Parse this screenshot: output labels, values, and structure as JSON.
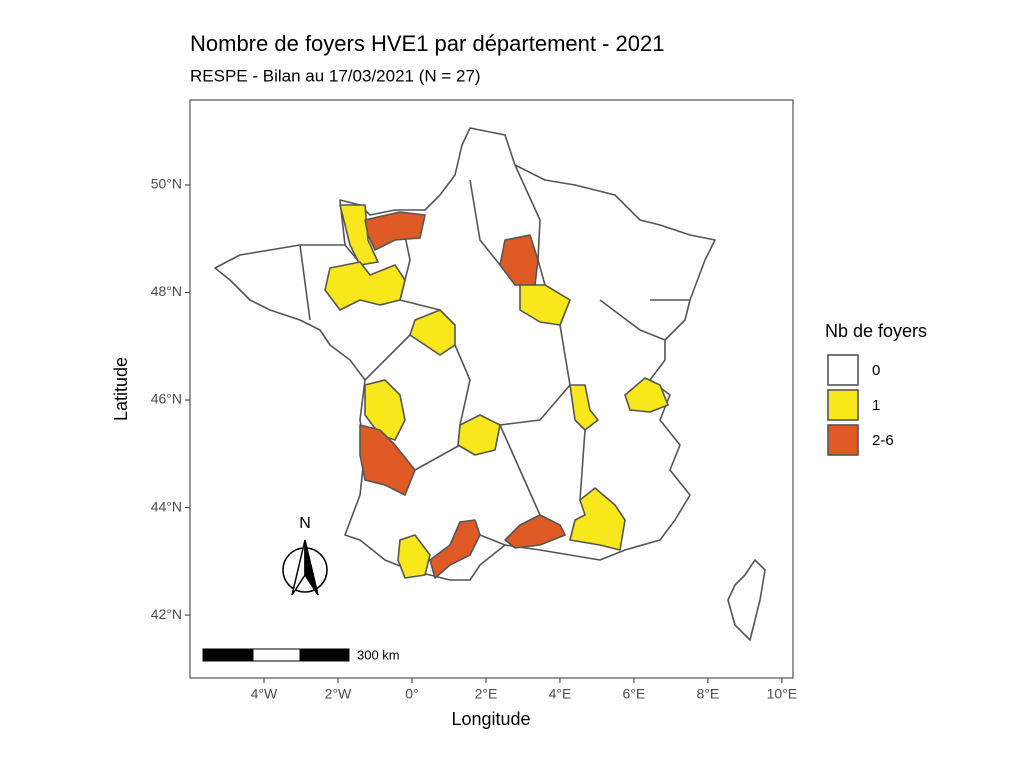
{
  "chart_data": {
    "type": "map",
    "title": "Nombre de foyers HVE1 par département - 2021",
    "subtitle": "RESPE - Bilan au 17/03/2021 (N = 27)",
    "x_label": "Longitude",
    "y_label": "Latitude",
    "xlim": [
      -6,
      10.3
    ],
    "ylim": [
      40.83,
      51.58
    ],
    "xticks": [
      {
        "value": -4,
        "label": "4°W"
      },
      {
        "value": -2,
        "label": "2°W"
      },
      {
        "value": 0,
        "label": "0°"
      },
      {
        "value": 2,
        "label": "2°E"
      },
      {
        "value": 4,
        "label": "4°E"
      },
      {
        "value": 6,
        "label": "6°E"
      },
      {
        "value": 8,
        "label": "8°E"
      },
      {
        "value": 10,
        "label": "10°E"
      }
    ],
    "yticks": [
      {
        "value": 42,
        "label": "42°N"
      },
      {
        "value": 44,
        "label": "44°N"
      },
      {
        "value": 46,
        "label": "46°N"
      },
      {
        "value": 48,
        "label": "48°N"
      },
      {
        "value": 50,
        "label": "50°N"
      }
    ],
    "grid": false,
    "legend": {
      "title": "Nb de foyers",
      "items": [
        {
          "label": "0",
          "color": "#ffffff"
        },
        {
          "label": "1",
          "color": "#f8e71b"
        },
        {
          "label": "2-6",
          "color": "#df5a24"
        }
      ]
    },
    "scale_bar": "300 km",
    "north": "N"
  }
}
